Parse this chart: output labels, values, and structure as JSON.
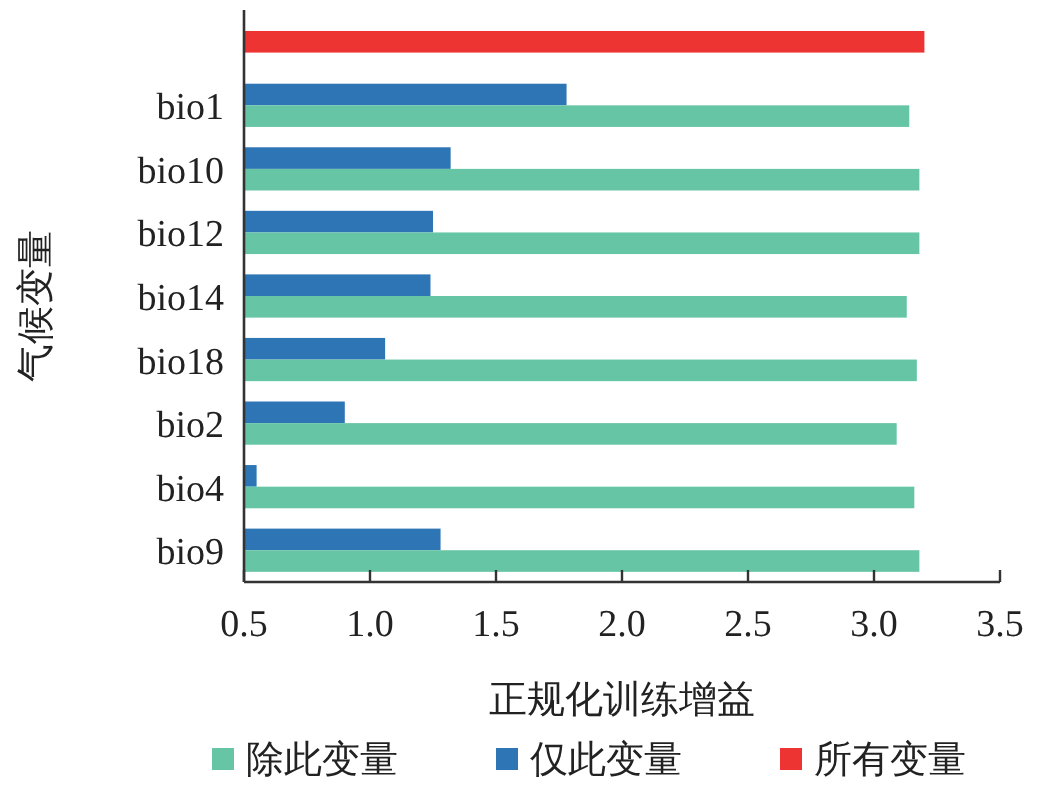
{
  "chart_data": {
    "type": "bar",
    "orientation": "horizontal",
    "xlabel": "正规化训练增益",
    "ylabel": "气候变量",
    "categories": [
      null,
      "bio1",
      "bio10",
      "bio12",
      "bio14",
      "bio18",
      "bio2",
      "bio4",
      "bio9"
    ],
    "series": [
      {
        "name": "除此变量",
        "color": "#66c5a5",
        "values": [
          null,
          3.14,
          3.18,
          3.18,
          3.13,
          3.17,
          3.09,
          3.16,
          3.18
        ]
      },
      {
        "name": "仅此变量",
        "color": "#2e75b6",
        "values": [
          null,
          1.78,
          1.32,
          1.25,
          1.24,
          1.06,
          0.9,
          0.55,
          1.28
        ]
      },
      {
        "name": "所有变量",
        "color": "#ee3333",
        "values": [
          3.2,
          null,
          null,
          null,
          null,
          null,
          null,
          null,
          null
        ]
      }
    ],
    "xlim": [
      0.5,
      3.5
    ],
    "xticks": [
      0.5,
      {
        "value": 1,
        "label": "1.0"
      },
      1.5,
      {
        "value": 2,
        "label": "2.0"
      },
      2.5,
      {
        "value": 3,
        "label": "3.0"
      },
      3.5
    ],
    "legend": "bottom",
    "grid": false
  }
}
